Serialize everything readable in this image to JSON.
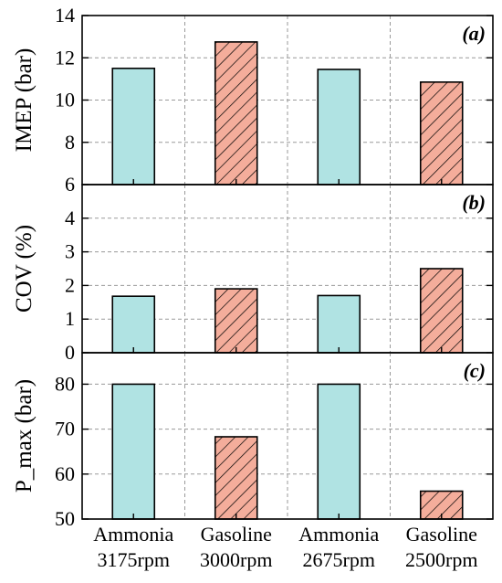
{
  "chart_data": [
    {
      "type": "bar",
      "panel_label": "(a)",
      "ylabel": "IMEP (bar)",
      "ylim": [
        6,
        14
      ],
      "yticks": [
        6,
        8,
        10,
        12,
        14
      ],
      "grid": true,
      "categories": [
        "Ammonia 3175rpm",
        "Gasoline 3000rpm",
        "Ammonia 2675rpm",
        "Gasoline 2500rpm"
      ],
      "values": [
        11.5,
        12.75,
        11.45,
        10.85
      ],
      "fuel": [
        "Ammonia",
        "Gasoline",
        "Ammonia",
        "Gasoline"
      ]
    },
    {
      "type": "bar",
      "panel_label": "(b)",
      "ylabel": "COV (%)",
      "ylim": [
        0,
        5
      ],
      "yticks": [
        0,
        1,
        2,
        3,
        4
      ],
      "grid": true,
      "categories": [
        "Ammonia 3175rpm",
        "Gasoline 3000rpm",
        "Ammonia 2675rpm",
        "Gasoline 2500rpm"
      ],
      "values": [
        1.68,
        1.9,
        1.7,
        2.5
      ],
      "fuel": [
        "Ammonia",
        "Gasoline",
        "Ammonia",
        "Gasoline"
      ]
    },
    {
      "type": "bar",
      "panel_label": "(c)",
      "ylabel": "P_max (bar)",
      "ylim": [
        50,
        87
      ],
      "yticks": [
        50,
        60,
        70,
        80
      ],
      "grid": true,
      "categories": [
        "Ammonia 3175rpm",
        "Gasoline 3000rpm",
        "Ammonia 2675rpm",
        "Gasoline 2500rpm"
      ],
      "values": [
        80,
        68.3,
        80,
        56.2
      ],
      "fuel": [
        "Ammonia",
        "Gasoline",
        "Ammonia",
        "Gasoline"
      ]
    }
  ],
  "x_categories": [
    {
      "line1": "Ammonia",
      "line2": "3175rpm"
    },
    {
      "line1": "Gasoline",
      "line2": "3000rpm"
    },
    {
      "line1": "Ammonia",
      "line2": "2675rpm"
    },
    {
      "line1": "Gasoline",
      "line2": "2500rpm"
    }
  ],
  "colors": {
    "Ammonia": "#b0e3e3",
    "Gasoline": "#f4ad9b",
    "hatch": "#000000",
    "grid": "#9a9a9a"
  }
}
